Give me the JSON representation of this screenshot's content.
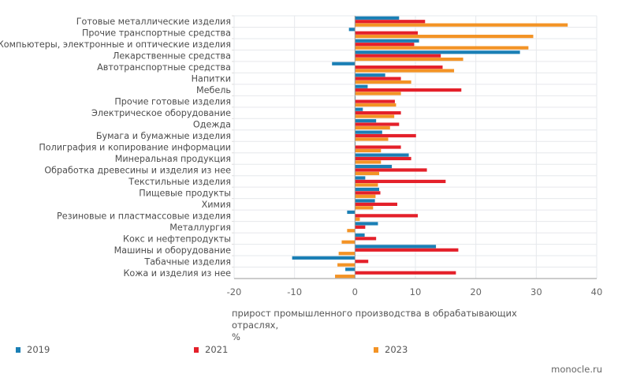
{
  "chart_data": {
    "type": "bar",
    "orientation": "horizontal",
    "title": "",
    "xlabel": "прирост промышленного производства в обрабатывающих отраслях, %",
    "ylabel": "",
    "xlim": [
      -20,
      40
    ],
    "xticks": [
      -20,
      -10,
      0,
      10,
      20,
      30,
      40
    ],
    "xtick_labels": [
      "-20",
      "-10",
      "0",
      "10",
      "20",
      "30",
      "40"
    ],
    "grid": true,
    "legend_position": "bottom",
    "categories": [
      "Готовые металлические изделия",
      "Прочие транспортные средства",
      "Компьютеры, электронные и оптические изделия",
      "Лекарственные средства",
      "Автотранспортные средства",
      "Напитки",
      "Мебель",
      "Прочие готовые изделия",
      "Электрическое оборудование",
      "Одежда",
      "Бумага и бумажные изделия",
      "Полиграфия и копирование информации",
      "Минеральная продукция",
      "Обработка древесины и изделия из нее",
      "Текстильные изделия",
      "Пищевые продукты",
      "Химия",
      "Резиновые и пластмассовые изделия",
      "Металлургия",
      "Кокс и нефтепродукты",
      "Машины и оборудование",
      "Табачные изделия",
      "Кожа и изделия из нее"
    ],
    "series": [
      {
        "name": "2019",
        "color": "#1a7fb5",
        "values": [
          7.3,
          -1.0,
          10.6,
          27.3,
          -3.8,
          5.0,
          2.1,
          0.1,
          1.3,
          3.5,
          4.5,
          0.1,
          8.9,
          6.1,
          1.7,
          4.0,
          3.3,
          -1.3,
          3.8,
          1.6,
          13.4,
          -10.4,
          -1.6
        ]
      },
      {
        "name": "2021",
        "color": "#e4202a",
        "values": [
          11.6,
          10.4,
          9.8,
          14.2,
          14.5,
          7.6,
          17.6,
          6.6,
          7.6,
          7.3,
          10.1,
          7.6,
          9.3,
          11.9,
          15.0,
          4.2,
          7.0,
          10.4,
          1.7,
          3.5,
          17.1,
          2.2,
          16.7
        ]
      },
      {
        "name": "2023",
        "color": "#f39325",
        "values": [
          35.2,
          29.5,
          28.7,
          17.9,
          16.4,
          9.3,
          7.6,
          6.8,
          6.5,
          5.8,
          5.5,
          4.3,
          4.3,
          4.0,
          3.8,
          3.4,
          3.0,
          0.8,
          -1.3,
          -2.2,
          -2.7,
          -2.9,
          -3.3
        ]
      }
    ]
  },
  "legend": [
    {
      "label": "2019",
      "color": "#1a7fb5"
    },
    {
      "label": "2021",
      "color": "#e4202a"
    },
    {
      "label": "2023",
      "color": "#f39325"
    }
  ],
  "axis_label_line1": "прирост промышленного производства в обрабатывающих отраслях,",
  "axis_label_line2": "%",
  "source": "monocle.ru"
}
